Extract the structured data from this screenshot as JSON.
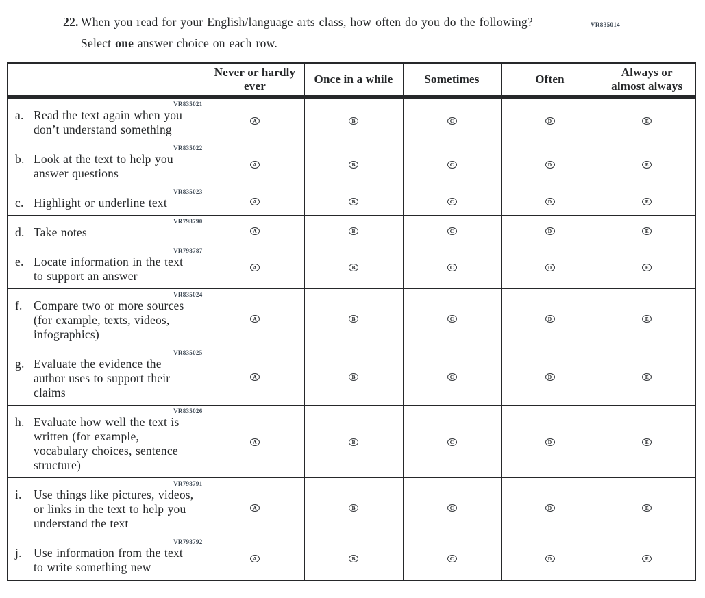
{
  "page": {
    "code": "VR835014"
  },
  "question": {
    "number": "22.",
    "text": "When you read for your English/language arts class, how often do you do the following?",
    "instruction_prefix": "Select ",
    "instruction_bold": "one",
    "instruction_suffix": " answer choice on each row."
  },
  "table": {
    "columns": [
      "Never or hardly\never",
      "Once in a while",
      "Sometimes",
      "Often",
      "Always or\nalmost always"
    ],
    "options": [
      "A",
      "B",
      "C",
      "D",
      "E"
    ],
    "rows": [
      {
        "code": "VR835021",
        "letter": "a.",
        "label": "Read the text again when you\ndon’t understand something"
      },
      {
        "code": "VR835022",
        "letter": "b.",
        "label": "Look at the text to help you\nanswer questions"
      },
      {
        "code": "VR835023",
        "letter": "c.",
        "label": "Highlight or underline text"
      },
      {
        "code": "VR798790",
        "letter": "d.",
        "label": "Take notes"
      },
      {
        "code": "VR798787",
        "letter": "e.",
        "label": "Locate information in the text\nto support an answer"
      },
      {
        "code": "VR835024",
        "letter": "f.",
        "label": "Compare two or more sources\n(for example, texts, videos,\ninfographics)"
      },
      {
        "code": "VR835025",
        "letter": "g.",
        "label": "Evaluate the evidence the\nauthor uses to support their\nclaims"
      },
      {
        "code": "VR835026",
        "letter": "h.",
        "label": "Evaluate how well the text is\nwritten (for example,\nvocabulary choices, sentence\nstructure)"
      },
      {
        "code": "VR798791",
        "letter": "i.",
        "label": "Use things like pictures, videos,\nor links in the text to help you\nunderstand the text"
      },
      {
        "code": "VR798792",
        "letter": "j.",
        "label": "Use information from the text\nto write something new"
      }
    ]
  },
  "colors": {
    "ink": "#26282a",
    "code_text": "#3c4753"
  }
}
